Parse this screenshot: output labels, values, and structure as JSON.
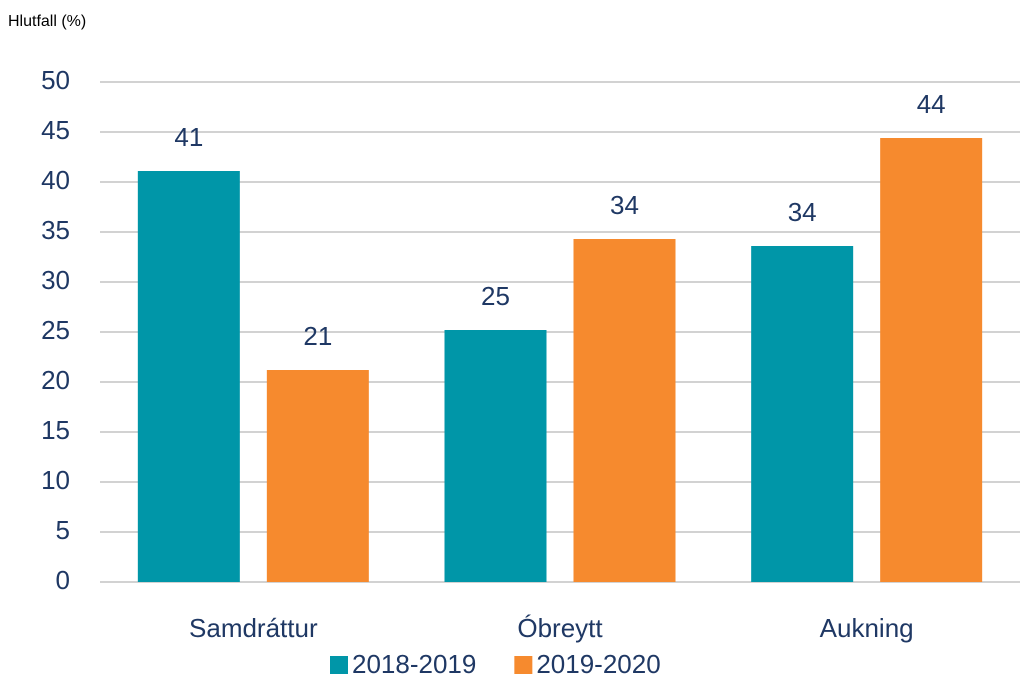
{
  "chart_data": {
    "type": "bar",
    "y_axis_label": "Hlutfall (%)",
    "categories": [
      "Samdráttur",
      "Óbreytt",
      "Aukning"
    ],
    "series": [
      {
        "name": "2018-2019",
        "color": "#0096a8",
        "values": [
          41.1,
          25.2,
          33.6
        ],
        "value_labels": [
          "41",
          "25",
          "34"
        ]
      },
      {
        "name": "2019-2020",
        "color": "#f68a2e",
        "values": [
          21.2,
          34.3,
          44.4
        ],
        "value_labels": [
          "21",
          "34",
          "44"
        ]
      }
    ],
    "ylim": [
      0,
      50
    ],
    "yticks": [
      0,
      5,
      10,
      15,
      20,
      25,
      30,
      35,
      40,
      45,
      50
    ],
    "grid": true
  }
}
